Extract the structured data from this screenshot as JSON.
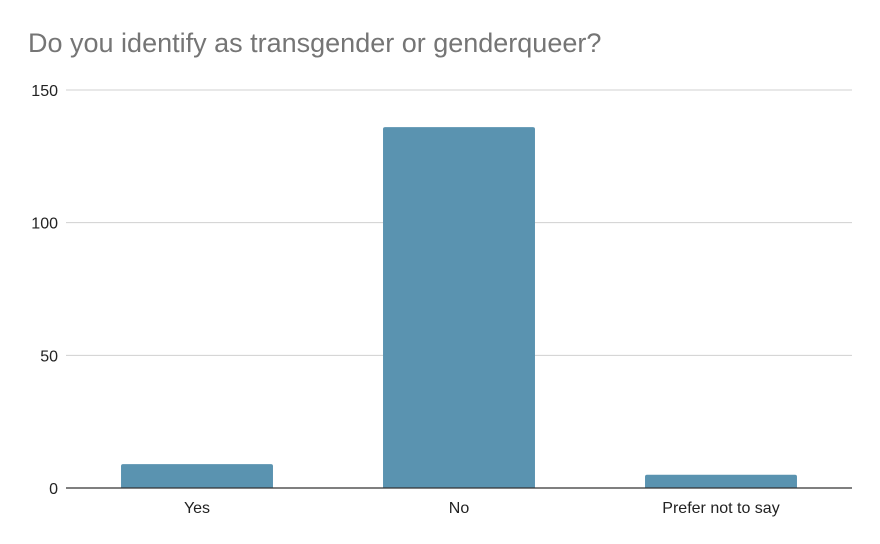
{
  "chart_data": {
    "type": "bar",
    "title": "Do you identify as transgender or genderqueer?",
    "categories": [
      "Yes",
      "No",
      "Prefer not to say"
    ],
    "values": [
      9,
      136,
      5
    ],
    "ylim": [
      0,
      150
    ],
    "yticks": [
      0,
      50,
      100,
      150
    ],
    "xlabel": "",
    "ylabel": "",
    "grid": true,
    "legend": "none",
    "colors": {
      "bar": "#5a93b0",
      "gridline": "#d0d0d0",
      "axis": "#333333",
      "title": "#757575"
    }
  }
}
